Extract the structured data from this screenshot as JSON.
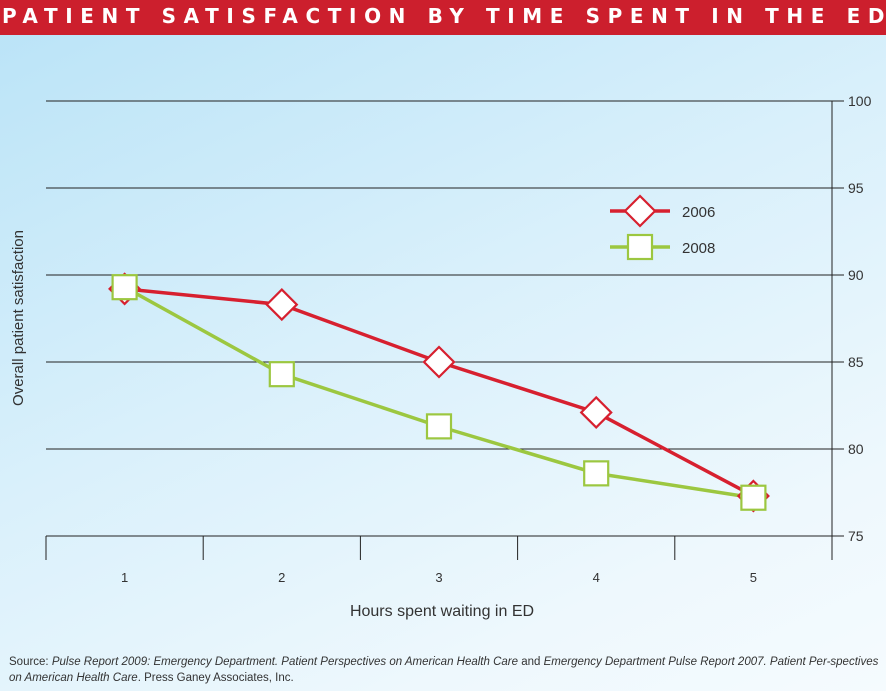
{
  "title": "PATIENT SATISFACTION BY TIME SPENT IN THE ED",
  "source": {
    "prefix": "Source: ",
    "part1": "Pulse Report 2009: Emergency Department. Patient Perspectives on American Health Care",
    "and": " and ",
    "part2": "Emergency Department Pulse Report 2007. Patient Per-spectives on American Health Care",
    "suffix": ". Press Ganey Associates, Inc."
  },
  "colors": {
    "title_bg": "#cc1f2d",
    "series_2006": "#d7202f",
    "series_2008": "#9cc740"
  },
  "chart_data": {
    "type": "line",
    "xlabel": "Hours spent waiting in ED",
    "ylabel": "Overall patient satisfaction",
    "x": [
      1,
      2,
      3,
      4,
      5
    ],
    "x_ticks": [
      "1",
      "2",
      "3",
      "4",
      "5"
    ],
    "ylim": [
      75,
      100
    ],
    "y_ticks": [
      75,
      80,
      85,
      90,
      95,
      100
    ],
    "y_axis_side": "right",
    "grid": "horizontal",
    "legend_position": "top-right",
    "series": [
      {
        "name": "2006",
        "marker": "diamond",
        "values": [
          89.2,
          88.3,
          85.0,
          82.1,
          77.3
        ]
      },
      {
        "name": "2008",
        "marker": "square",
        "values": [
          89.3,
          84.3,
          81.3,
          78.6,
          77.2
        ]
      }
    ]
  }
}
